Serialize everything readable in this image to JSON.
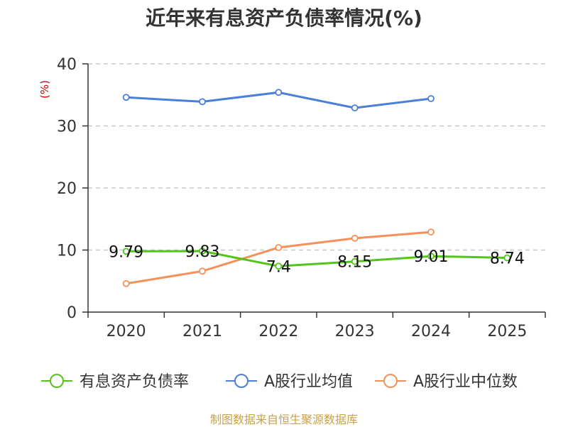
{
  "chart_data": {
    "type": "line",
    "title": "近年来有息资产负债率情况(%)",
    "ylabel": "(%)",
    "unit_color": "#cc0000",
    "categories": [
      "2020",
      "2021",
      "2022",
      "2023",
      "2024",
      "2025"
    ],
    "ylim": [
      0,
      40
    ],
    "yticks": [
      0,
      10,
      20,
      30,
      40
    ],
    "grid": true,
    "legend_position": "bottom",
    "series": [
      {
        "name": "有息资产负债率",
        "color": "#52c41a",
        "values": [
          9.79,
          9.83,
          7.4,
          8.15,
          9.01,
          8.74
        ],
        "labels": [
          "9.79",
          "9.83",
          "7.4",
          "8.15",
          "9.01",
          "8.74"
        ],
        "show_labels": true
      },
      {
        "name": "A股行业均值",
        "color": "#4a7fd9",
        "values": [
          34.6,
          33.9,
          35.4,
          32.9,
          34.4,
          null
        ],
        "show_labels": false
      },
      {
        "name": "A股行业中位数",
        "color": "#f5905a",
        "values": [
          4.6,
          6.6,
          10.4,
          11.9,
          12.9,
          null
        ],
        "show_labels": false
      }
    ],
    "source": "制图数据来自恒生聚源数据库"
  }
}
